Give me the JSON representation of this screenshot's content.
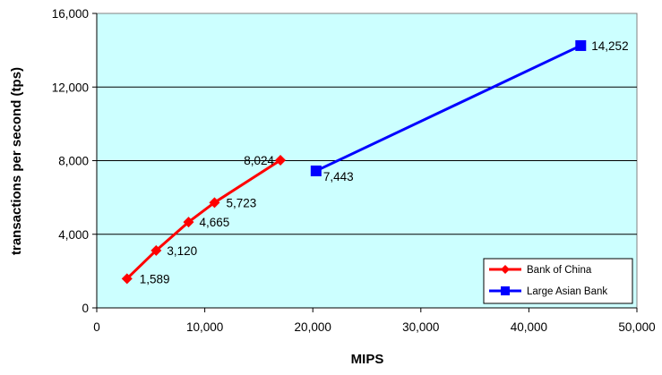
{
  "chart_data": {
    "type": "line",
    "title": "",
    "xlabel": "MIPS",
    "ylabel": "transactions per second (tps)",
    "xlim": [
      0,
      50000
    ],
    "ylim": [
      0,
      16000
    ],
    "x_ticks": [
      0,
      10000,
      20000,
      30000,
      40000,
      50000
    ],
    "x_tick_labels": [
      "0",
      "10,000",
      "20,000",
      "30,000",
      "40,000",
      "50,000"
    ],
    "y_ticks": [
      0,
      4000,
      8000,
      12000,
      16000
    ],
    "y_tick_labels": [
      "0",
      "4,000",
      "8,000",
      "12,000",
      "16,000"
    ],
    "grid": "horizontal",
    "plot_background": "#ccffff",
    "legend_position": "bottom-right",
    "series": [
      {
        "name": "Bank of China",
        "color": "#ff0000",
        "marker": "diamond",
        "x": [
          2800,
          5500,
          8500,
          10900,
          17000
        ],
        "y": [
          1589,
          3120,
          4665,
          5723,
          8024
        ],
        "labels": [
          "1,589",
          "3,120",
          "4,665",
          "5,723",
          "8,024"
        ]
      },
      {
        "name": "Large Asian Bank",
        "color": "#0000ff",
        "marker": "square",
        "x": [
          20300,
          44800
        ],
        "y": [
          7443,
          14252
        ],
        "labels": [
          "7,443",
          "14,252"
        ]
      }
    ]
  }
}
